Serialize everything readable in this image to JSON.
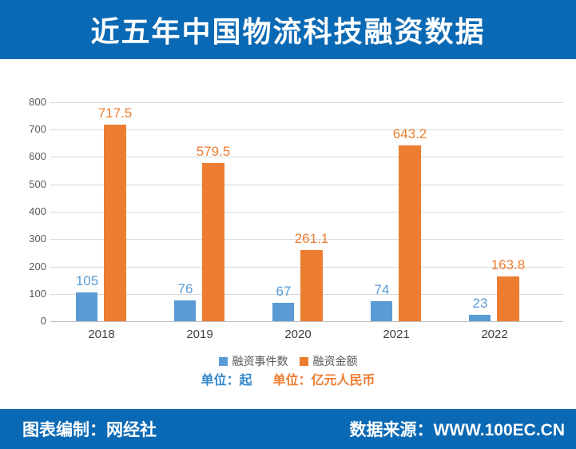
{
  "header": {
    "title": "近五年中国物流科技融资数据"
  },
  "chart_data": {
    "type": "bar",
    "title": "近五年中国物流科技融资数据",
    "categories": [
      "2018",
      "2019",
      "2020",
      "2021",
      "2022"
    ],
    "series": [
      {
        "name": "融资事件数",
        "color": "#5B9BD5",
        "values": [
          105,
          76,
          67,
          74,
          23
        ]
      },
      {
        "name": "融资金额",
        "color": "#ED7D31",
        "values": [
          717.5,
          579.5,
          261.1,
          643.2,
          163.8
        ]
      }
    ],
    "ylabel": "",
    "xlabel": "",
    "ylim": [
      0,
      800
    ],
    "ytick_step": 100,
    "grid": true,
    "legend_position": "bottom",
    "value_labels": true
  },
  "legend": {
    "items": [
      {
        "label": "融资事件数",
        "color": "#5B9BD5"
      },
      {
        "label": "融资金额",
        "color": "#ED7D31"
      }
    ]
  },
  "units_row": {
    "events": {
      "label": "单位：起",
      "color": "#3588CB"
    },
    "amount": {
      "label": "单位：亿元人民币",
      "color": "#ED7D31"
    }
  },
  "footer": {
    "left": "图表编制：网经社",
    "right": "数据来源：WWW.100EC.CN"
  },
  "colors": {
    "banner": "#0A69B4",
    "title_text": "#FFFFFF",
    "bar_blue": "#5B9BD5",
    "bar_orange": "#ED7D31",
    "gridline": "#D9D9D9",
    "axis_text": "#595959",
    "xlabel_text": "#404040"
  }
}
